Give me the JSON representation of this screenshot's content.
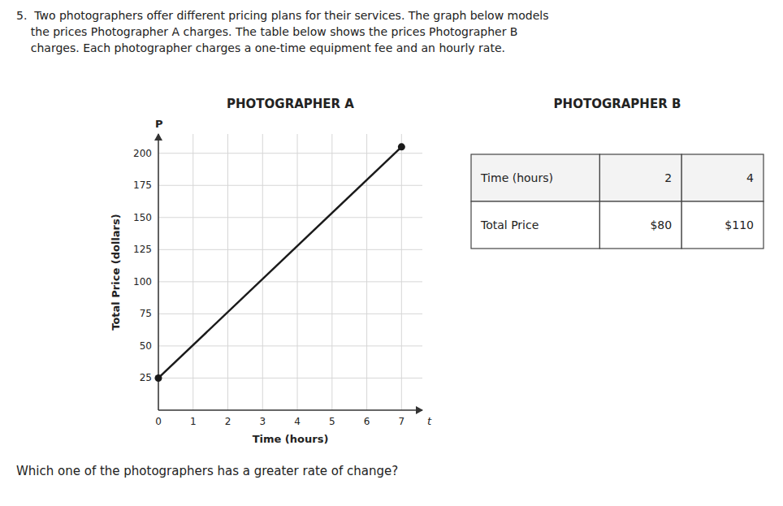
{
  "chart_data": [
    {
      "type": "line",
      "title": "PHOTOGRAPHER A",
      "x_label": "Time (hours)",
      "y_label": "Total Price (dollars)",
      "x": [
        0,
        7
      ],
      "values": [
        25,
        205
      ],
      "color": "#1a1a1a",
      "marker": "circle",
      "xlim": [
        0,
        7.6
      ],
      "ylim": [
        0,
        215
      ],
      "xticks": [
        0,
        1,
        2,
        3,
        4,
        5,
        6,
        7
      ],
      "yticks": [
        25,
        50,
        75,
        100,
        125,
        150,
        175,
        200
      ],
      "grid": true,
      "annotations": [
        "5.  Two photographers offer different pricing plans for their services. The graph below models",
        "    the prices Photographer A charges. The table below shows the prices Photographer B",
        "    charges. Each photographer charges a one-time equipment fee and an hourly rate.",
        "Which one of the photographers has a greater rate of change?",
        "P",
        "t"
      ]
    },
    {
      "type": "table",
      "title": "PHOTOGRAPHER B",
      "rows": [
        [
          "Time (hours)",
          "2",
          "4"
        ],
        [
          "Total Price",
          "$80",
          "$110"
        ]
      ]
    }
  ]
}
